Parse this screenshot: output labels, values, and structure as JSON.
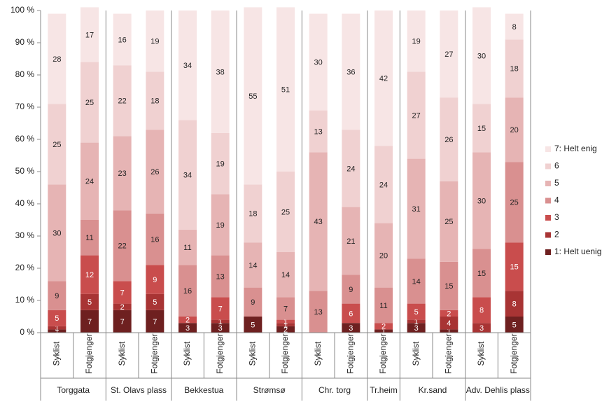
{
  "chart_data": {
    "type": "stacked_bar",
    "groups": [
      {
        "name": "Torggata",
        "categories": [
          "Syklist",
          "Fotgjenger"
        ]
      },
      {
        "name": "St. Olavs plass",
        "categories": [
          "Syklist",
          "Fotgjenger"
        ]
      },
      {
        "name": "Bekkestua",
        "categories": [
          "Syklist",
          "Fotgjenger"
        ]
      },
      {
        "name": "Strømsø",
        "categories": [
          "Syklist",
          "Fotgjenger"
        ]
      },
      {
        "name": "Chr. torg",
        "categories": [
          "Syklist",
          "Fotgjenger"
        ]
      },
      {
        "name": "Tr.heim",
        "categories": [
          "Fotgjenger"
        ]
      },
      {
        "name": "Kr.sand",
        "categories": [
          "Syklist",
          "Fotgjenger"
        ]
      },
      {
        "name": "Adv. Dehlis plass",
        "categories": [
          "Syklist",
          "Fotgjenger"
        ]
      }
    ],
    "series": [
      {
        "name": "1: Helt uenig",
        "color": "#6e2020",
        "values": [
          1,
          7,
          7,
          7,
          3,
          3,
          5,
          2,
          0,
          3,
          1,
          3,
          1,
          0,
          5
        ]
      },
      {
        "name": "2",
        "color": "#a83434",
        "values": [
          1,
          5,
          2,
          5,
          0,
          1,
          0,
          1,
          0,
          0,
          0,
          1,
          4,
          3,
          8
        ]
      },
      {
        "name": "3",
        "color": "#c94d4d",
        "values": [
          5,
          12,
          7,
          9,
          2,
          7,
          0,
          1,
          0,
          6,
          2,
          5,
          2,
          8,
          15
        ]
      },
      {
        "name": "4",
        "color": "#d99090",
        "values": [
          9,
          11,
          22,
          16,
          16,
          13,
          9,
          7,
          13,
          9,
          11,
          14,
          15,
          15,
          25
        ]
      },
      {
        "name": "5",
        "color": "#e6b4b4",
        "values": [
          30,
          24,
          23,
          26,
          11,
          19,
          14,
          14,
          43,
          21,
          20,
          31,
          25,
          30,
          20
        ]
      },
      {
        "name": "6",
        "color": "#f0d1d1",
        "values": [
          25,
          25,
          22,
          18,
          34,
          19,
          18,
          25,
          13,
          24,
          24,
          27,
          26,
          15,
          18
        ]
      },
      {
        "name": "7: Helt enig",
        "color": "#f7e5e5",
        "values": [
          28,
          17,
          16,
          19,
          34,
          38,
          55,
          51,
          30,
          36,
          42,
          19,
          27,
          30,
          8
        ]
      }
    ],
    "ylim": [
      0,
      100
    ],
    "yticks": [
      {
        "value": 0,
        "label": "0 %"
      },
      {
        "value": 10,
        "label": "10 %"
      },
      {
        "value": 20,
        "label": "20 %"
      },
      {
        "value": 30,
        "label": "30 %"
      },
      {
        "value": 40,
        "label": "40 %"
      },
      {
        "value": 50,
        "label": "50 %"
      },
      {
        "value": 60,
        "label": "60 %"
      },
      {
        "value": 70,
        "label": "70 %"
      },
      {
        "value": 80,
        "label": "80 %"
      },
      {
        "value": 90,
        "label": "90 %"
      },
      {
        "value": 100,
        "label": "100 %"
      }
    ],
    "legend": "right"
  }
}
